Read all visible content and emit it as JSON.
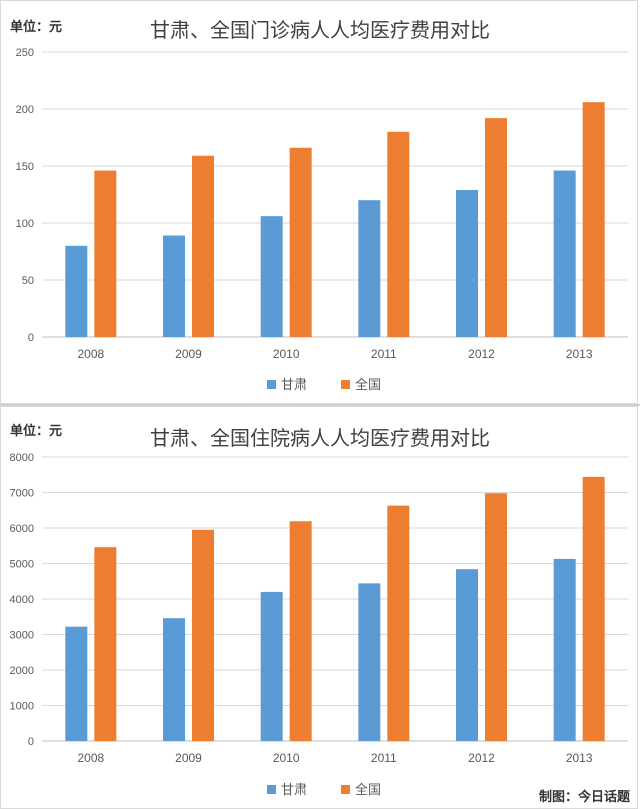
{
  "chart_data": [
    {
      "type": "bar",
      "unit_label": "单位：元",
      "title": "甘肃、全国门诊病人人均医疗费用对比",
      "categories": [
        "2008",
        "2009",
        "2010",
        "2011",
        "2012",
        "2013"
      ],
      "series": [
        {
          "name": "甘肃",
          "color": "#5b9bd5",
          "values": [
            80,
            89,
            106,
            120,
            129,
            146
          ]
        },
        {
          "name": "全国",
          "color": "#ed7d31",
          "values": [
            146,
            159,
            166,
            180,
            192,
            206
          ]
        }
      ],
      "ylim": [
        0,
        250
      ],
      "yticks": [
        0,
        50,
        100,
        150,
        200,
        250
      ],
      "legend": "bottom",
      "grid": true
    },
    {
      "type": "bar",
      "unit_label": "单位：元",
      "title": "甘肃、全国住院病人人均医疗费用对比",
      "categories": [
        "2008",
        "2009",
        "2010",
        "2011",
        "2012",
        "2013"
      ],
      "series": [
        {
          "name": "甘肃",
          "color": "#5b9bd5",
          "values": [
            3220,
            3460,
            4200,
            4440,
            4840,
            5130
          ]
        },
        {
          "name": "全国",
          "color": "#ed7d31",
          "values": [
            5460,
            5950,
            6190,
            6630,
            6980,
            7440
          ]
        }
      ],
      "ylim": [
        0,
        8000
      ],
      "yticks": [
        0,
        1000,
        2000,
        3000,
        4000,
        5000,
        6000,
        7000,
        8000
      ],
      "legend": "bottom",
      "grid": true
    }
  ],
  "credit": "制图：今日话题"
}
